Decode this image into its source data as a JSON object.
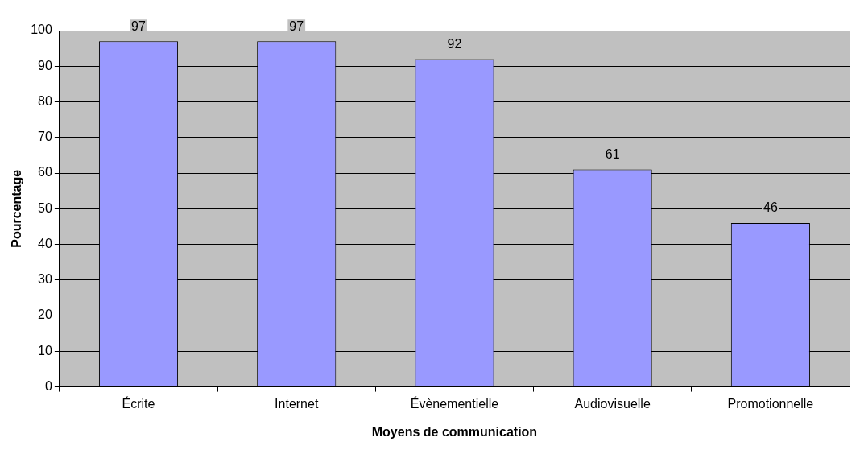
{
  "chart_data": {
    "type": "bar",
    "xlabel": "Moyens de communication",
    "ylabel": "Pourcentage",
    "categories": [
      "Écrite",
      "Internet",
      "Évènementielle",
      "Audiovisuelle",
      "Promotionnelle"
    ],
    "values": [
      97,
      97,
      92,
      61,
      46
    ],
    "color": "#9999ff",
    "ylim": [
      0,
      100
    ],
    "yticks": [
      0,
      10,
      20,
      30,
      40,
      50,
      60,
      70,
      80,
      90,
      100
    ],
    "grid": "y",
    "legend": false,
    "data_labels": true
  }
}
